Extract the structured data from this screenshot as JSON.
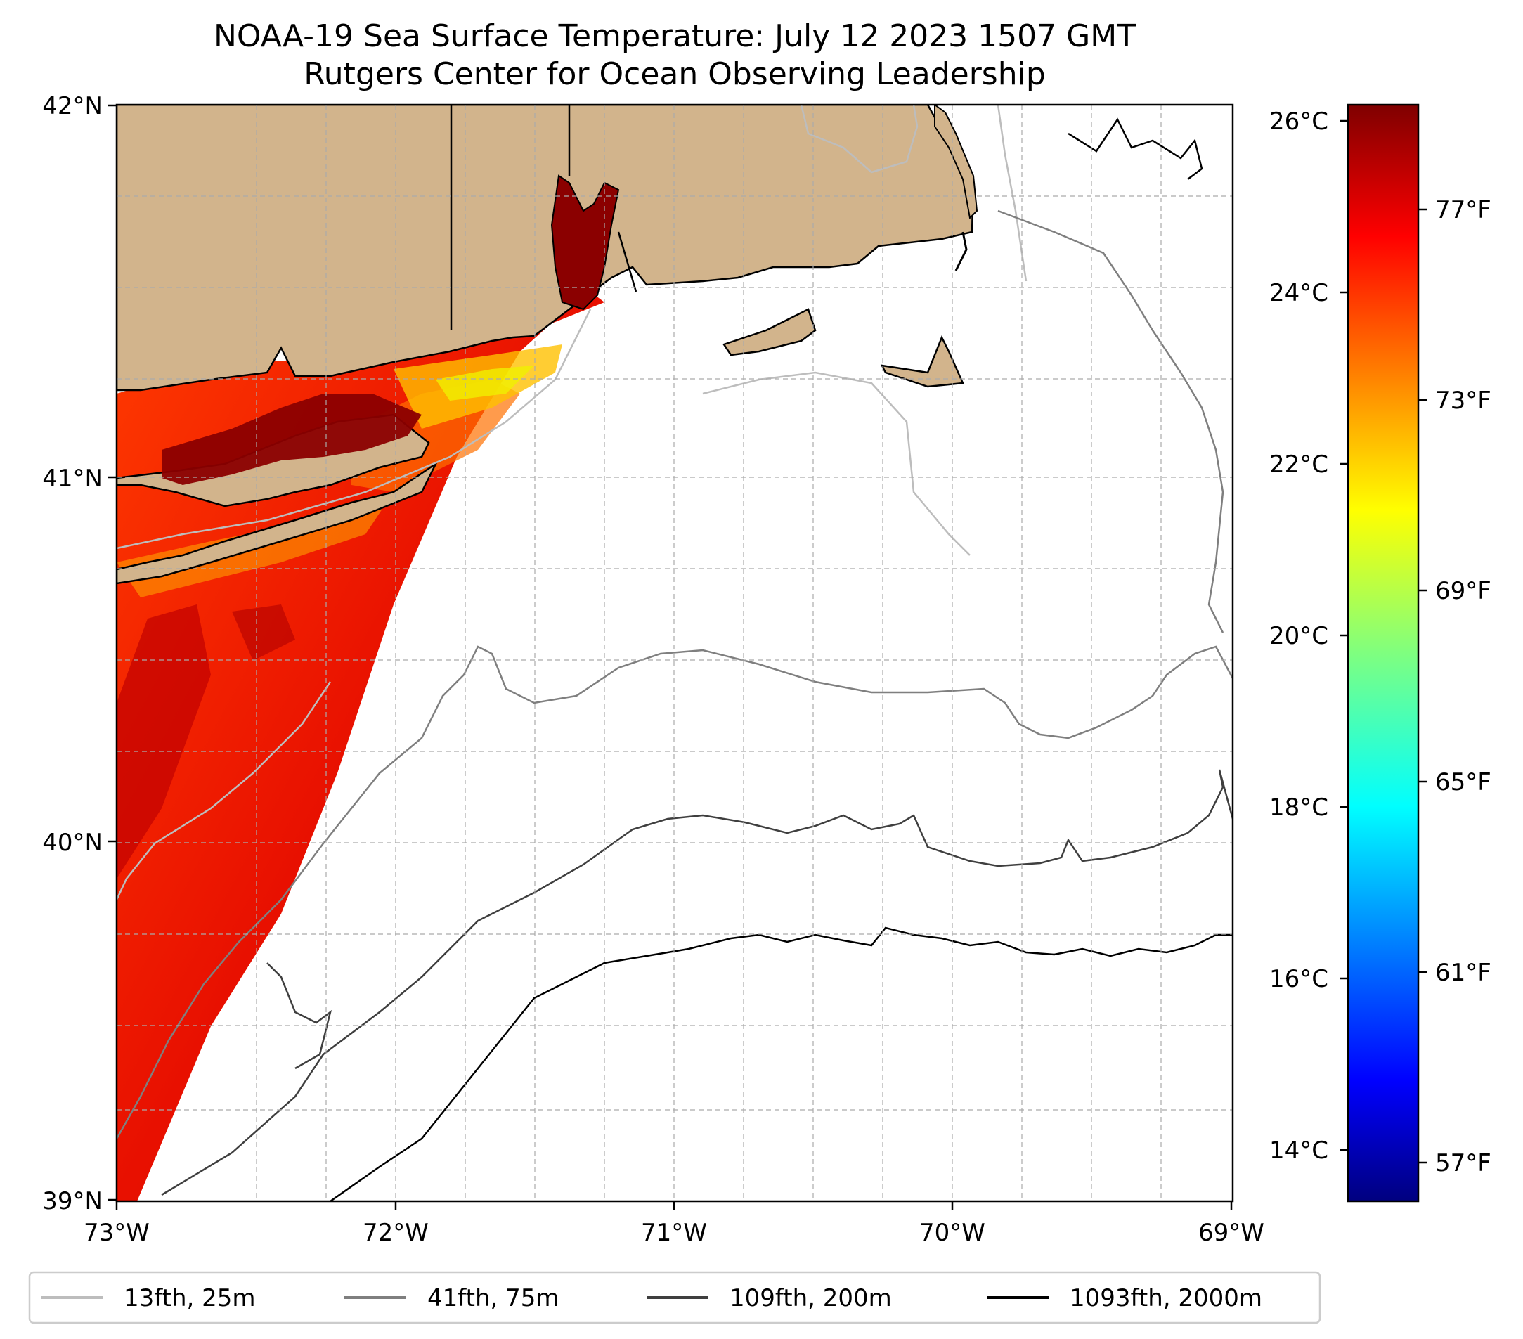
{
  "title": {
    "line1": "NOAA-19 Sea Surface Temperature: July 12 2023 1507 GMT",
    "line2": "Rutgers Center for Ocean Observing Leadership"
  },
  "map": {
    "lon_range": [
      -73,
      -69
    ],
    "lat_range": [
      39,
      42
    ],
    "x_ticks": [
      "73°W",
      "72°W",
      "71°W",
      "70°W",
      "69°W"
    ],
    "y_ticks": [
      "39°N",
      "40°N",
      "41°N",
      "42°N"
    ],
    "land_color": "#d2b48c",
    "ocean_color": "#ffffff"
  },
  "colorbar": {
    "celsius_ticks": [
      "14°C",
      "16°C",
      "18°C",
      "20°C",
      "22°C",
      "24°C",
      "26°C"
    ],
    "fahrenheit_ticks": [
      "57°F",
      "61°F",
      "65°F",
      "69°F",
      "73°F",
      "77°F"
    ],
    "range_c": [
      13.5,
      26.3
    ],
    "colormap": "jet"
  },
  "legend": {
    "items": [
      {
        "label": "13fth, 25m",
        "color": "#bdbdbd"
      },
      {
        "label": "41fth, 75m",
        "color": "#7f7f7f"
      },
      {
        "label": "109fth, 200m",
        "color": "#3f3f3f"
      },
      {
        "label": "1093fth, 2000m",
        "color": "#000000"
      }
    ]
  }
}
